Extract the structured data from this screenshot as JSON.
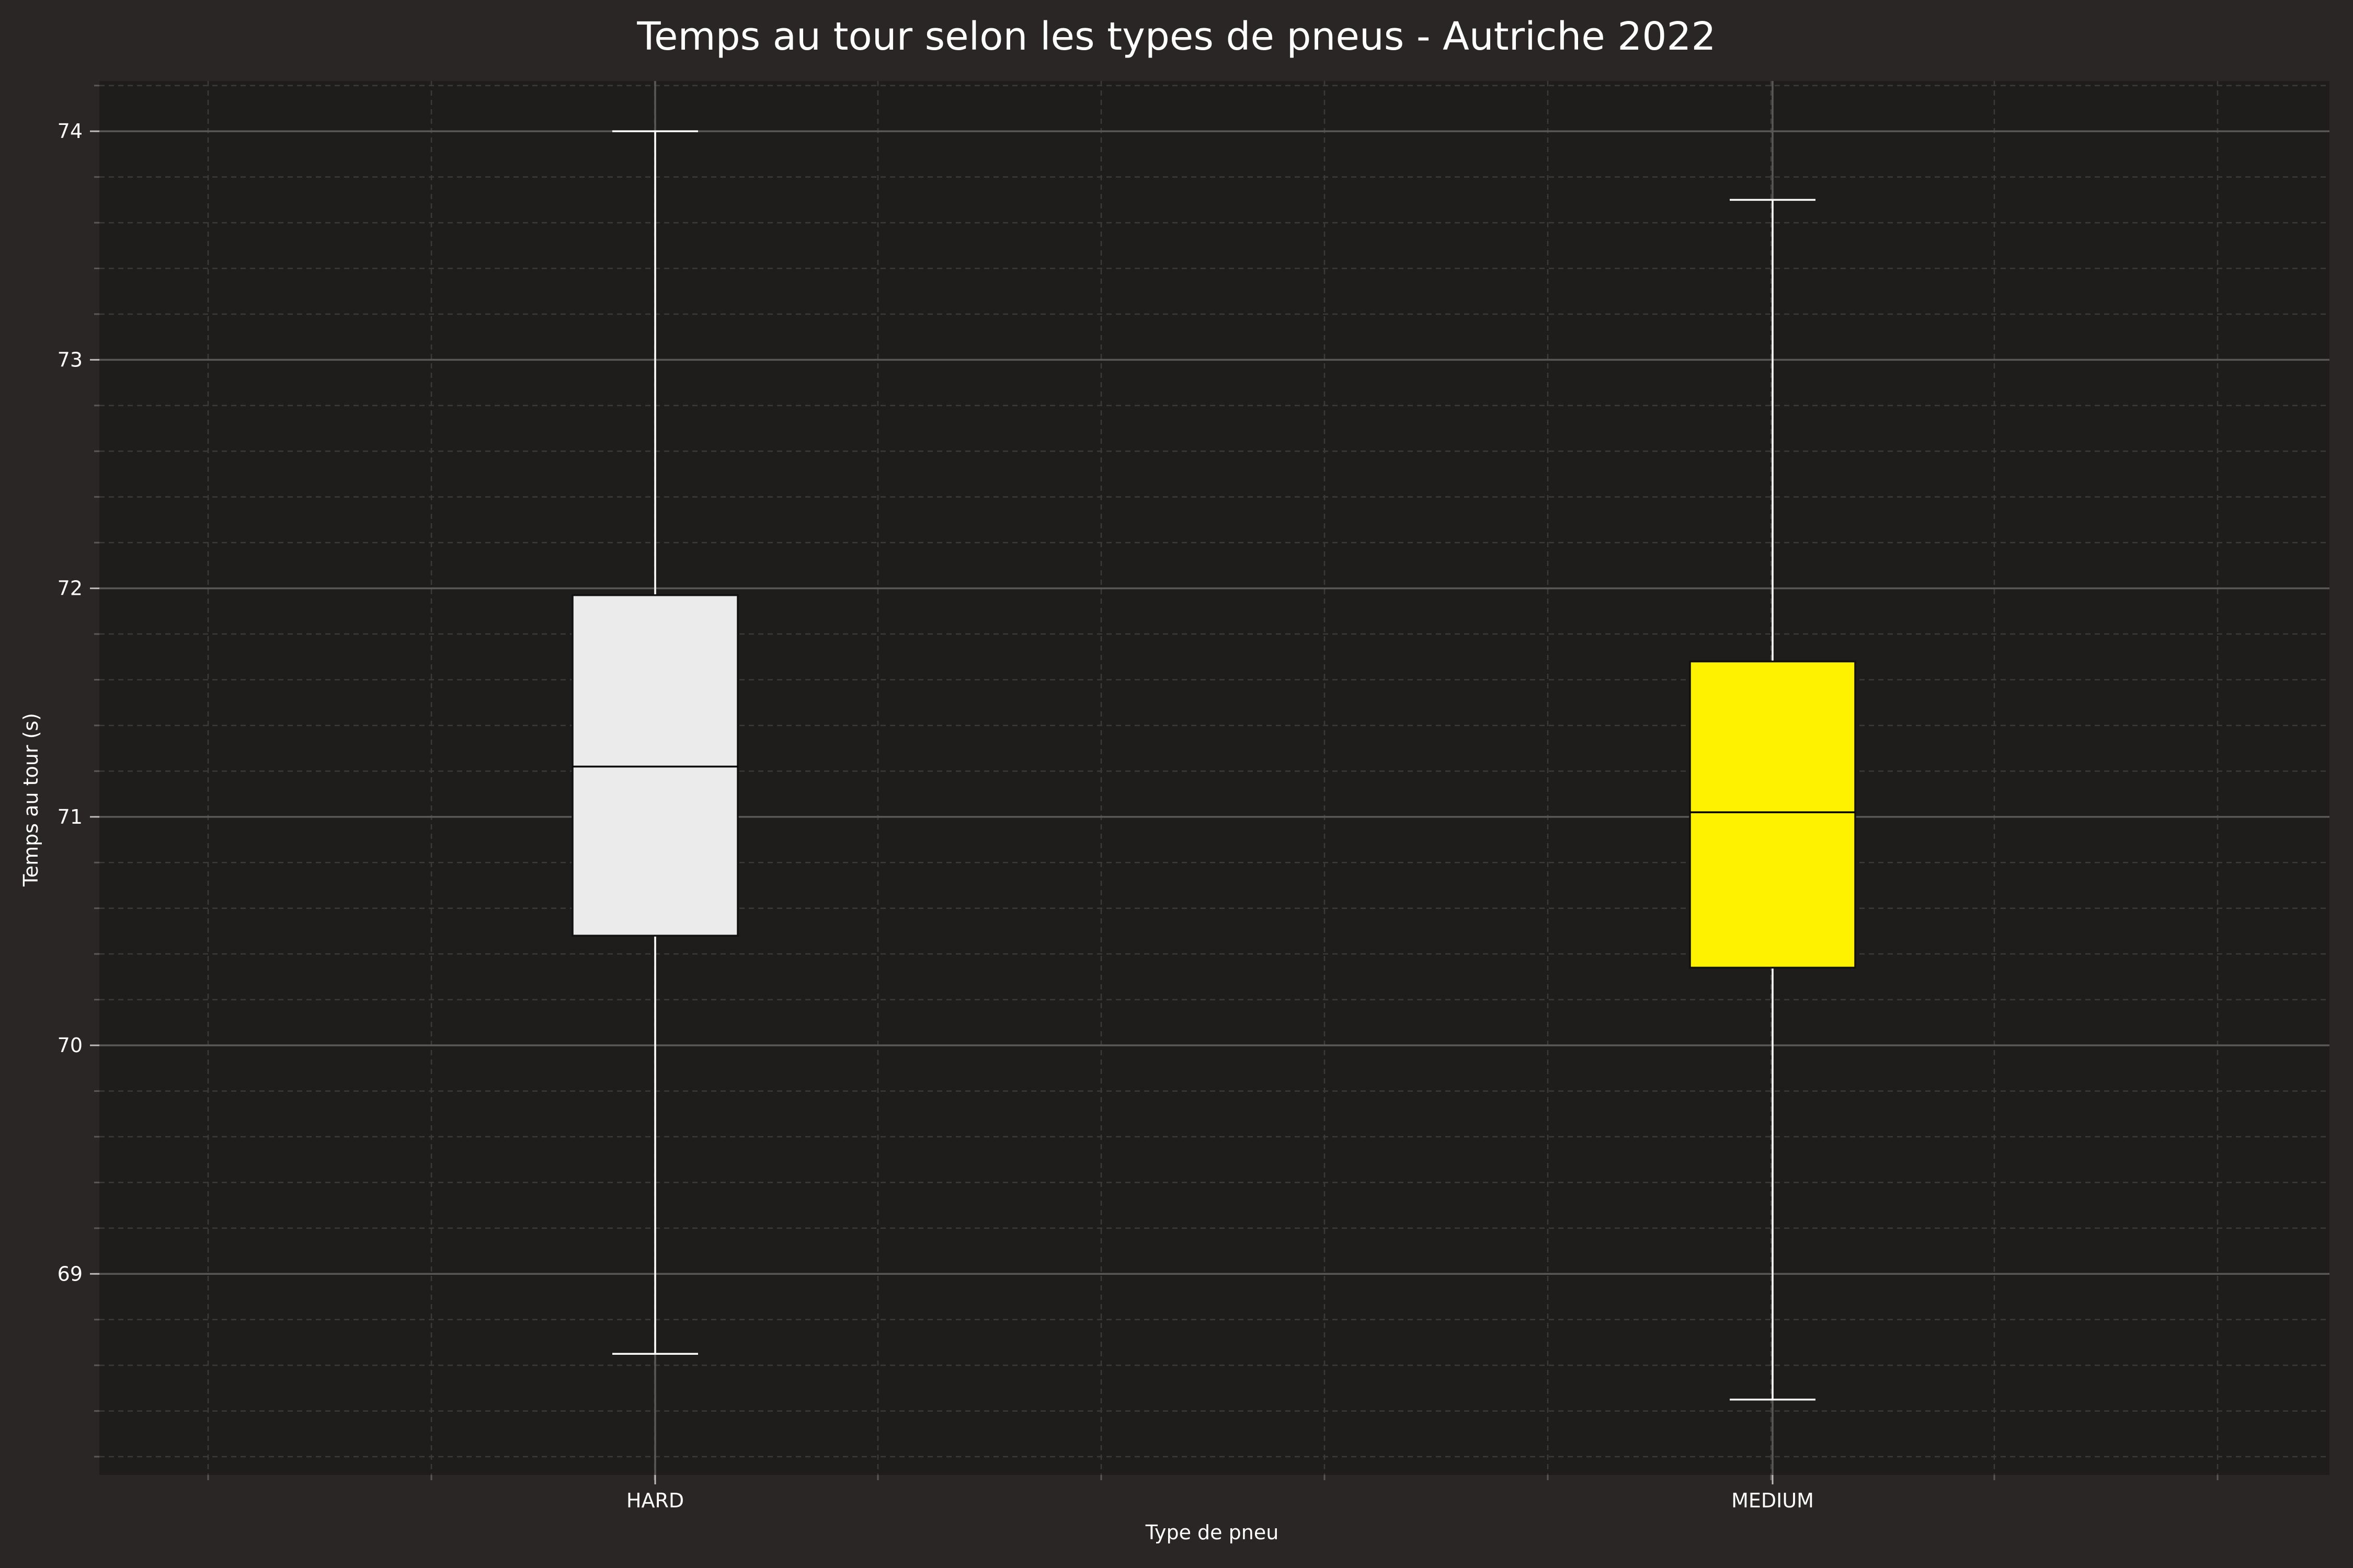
{
  "chart_data": {
    "type": "box",
    "title": "Temps au tour selon les types de pneus - Autriche 2022",
    "xlabel": "Type de pneu",
    "ylabel": "Temps au tour (s)",
    "categories": [
      "HARD",
      "MEDIUM"
    ],
    "series": [
      {
        "category": "HARD",
        "whisker_low": 68.65,
        "q1": 70.48,
        "median": 71.22,
        "q3": 71.97,
        "whisker_high": 74.0,
        "color": "#ebebeb"
      },
      {
        "category": "MEDIUM",
        "whisker_low": 68.45,
        "q1": 70.34,
        "median": 71.02,
        "q3": 71.68,
        "whisker_high": 73.7,
        "color": "#fff200"
      }
    ],
    "ylim": [
      68.12,
      74.22
    ],
    "yticks": [
      69,
      70,
      71,
      72,
      73,
      74
    ],
    "grid": true,
    "minor_grid": true
  },
  "colors": {
    "figure_bg": "#2a2625",
    "axes_bg": "#1e1d1c",
    "grid_major": "#5a5856",
    "grid_minor": "#3c3a38",
    "text": "#ffffff"
  }
}
